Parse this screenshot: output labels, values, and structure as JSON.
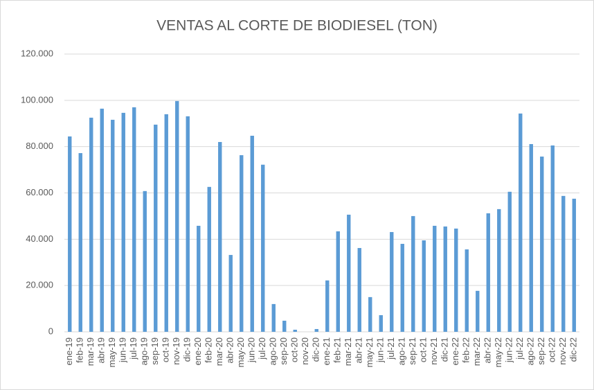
{
  "chart_data": {
    "type": "bar",
    "title": "VENTAS AL CORTE DE BIODIESEL (TON)",
    "categories": [
      "ene-19",
      "feb-19",
      "mar-19",
      "abr-19",
      "may-19",
      "jun-19",
      "jul-19",
      "ago-19",
      "sep-19",
      "oct-19",
      "nov-19",
      "dic-19",
      "ene-20",
      "feb-20",
      "mar-20",
      "abr-20",
      "may-20",
      "jun-20",
      "jul-20",
      "ago-20",
      "sep-20",
      "oct-20",
      "nov-20",
      "dic-20",
      "ene-21",
      "feb-21",
      "mar-21",
      "abr-21",
      "may-21",
      "jun-21",
      "jul-21",
      "ago-21",
      "sep-21",
      "oct-21",
      "nov-21",
      "dic-21",
      "ene-22",
      "feb-22",
      "mar-22",
      "abr-22",
      "may-22",
      "jun-22",
      "jul-22",
      "ago-22",
      "sep-22",
      "oct-22",
      "nov-22",
      "dic-22"
    ],
    "values": [
      84400,
      77200,
      92500,
      96400,
      91600,
      94600,
      97000,
      60800,
      89500,
      94000,
      99700,
      93100,
      45800,
      62600,
      82000,
      33200,
      76300,
      84700,
      72200,
      12000,
      4800,
      900,
      0,
      1200,
      22200,
      43400,
      50600,
      36200,
      15000,
      7200,
      43100,
      38000,
      50000,
      39500,
      45800,
      45500,
      44600,
      35600,
      17700,
      51200,
      53000,
      60500,
      94300,
      81100,
      75700,
      80500,
      58700,
      57500
    ],
    "color": "#5b9bd5",
    "ylim": [
      0,
      120000
    ],
    "yticks": [
      0,
      {
        "value": 20000,
        "label": "20.000"
      },
      {
        "value": 40000,
        "label": "40.000"
      },
      {
        "value": 60000,
        "label": "60.000"
      },
      {
        "value": 80000,
        "label": "80.000"
      },
      {
        "value": 100000,
        "label": "100.000"
      },
      {
        "value": 120000,
        "label": "120.000"
      }
    ],
    "grid": true
  }
}
